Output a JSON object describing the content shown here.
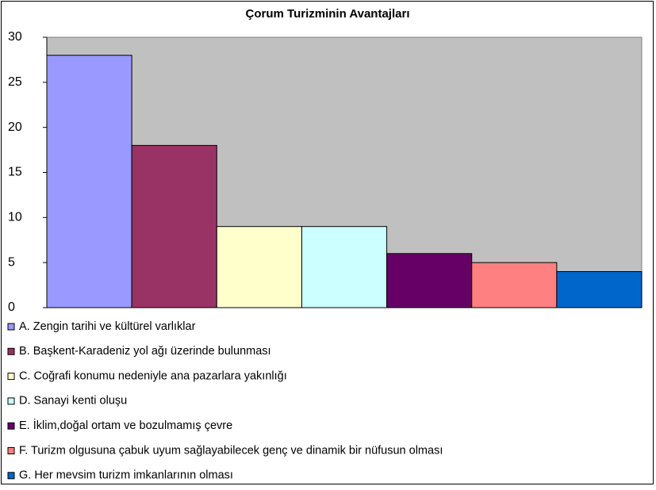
{
  "chart_data": {
    "type": "bar",
    "title": "Çorum Turizminin Avantajları",
    "series": [
      {
        "name": "A. Zengin tarihi ve kültürel varlıklar",
        "color": "#9999ff",
        "values": [
          28
        ]
      },
      {
        "name": "B. Başkent-Karadeniz yol ağı üzerinde bulunması",
        "color": "#993366",
        "values": [
          18
        ]
      },
      {
        "name": "C. Coğrafi konumu nedeniyle ana pazarlara yakınlığı",
        "color": "#ffffcc",
        "values": [
          9
        ]
      },
      {
        "name": "D. Sanayi kenti oluşu",
        "color": "#ccffff",
        "values": [
          9
        ]
      },
      {
        "name": "E. İklim,doğal ortam ve bozulmamış çevre",
        "color": "#660066",
        "values": [
          6
        ]
      },
      {
        "name": "F. Turizm olgusuna çabuk uyum sağlayabilecek genç ve dinamik bir nüfusun olması",
        "color": "#ff8080",
        "values": [
          5
        ]
      },
      {
        "name": "G. Her mevsim turizm imkanlarının olması",
        "color": "#0066cc",
        "values": [
          4
        ]
      }
    ],
    "ylim": [
      0,
      30
    ],
    "yticks": [
      0,
      5,
      10,
      15,
      20,
      25,
      30
    ],
    "grid": false,
    "legend": "bottom",
    "plot_background": "#c0c0c0"
  }
}
